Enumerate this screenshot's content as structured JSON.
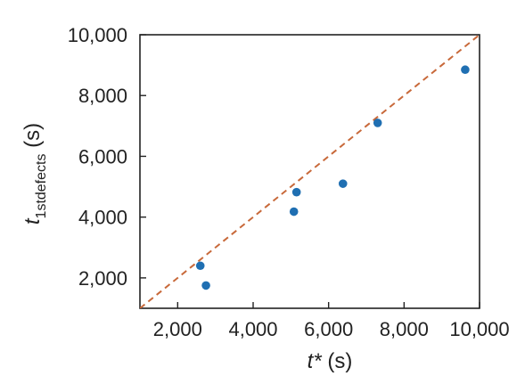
{
  "chart_data": {
    "type": "scatter",
    "xlabel": {
      "var": "t*",
      "unit": "(s)"
    },
    "ylabel": {
      "var": "t",
      "sub": "1stdefects",
      "unit": "(s)"
    },
    "xlim": [
      1000,
      10000
    ],
    "ylim": [
      1000,
      10000
    ],
    "x_ticks": [
      2000,
      4000,
      6000,
      8000,
      10000
    ],
    "x_tick_labels": [
      "2,000",
      "4,000",
      "6,000",
      "8,000",
      "10,000"
    ],
    "y_ticks": [
      2000,
      4000,
      6000,
      8000,
      10000
    ],
    "y_tick_labels": [
      "2,000",
      "4,000",
      "6,000",
      "8,000",
      "10,000"
    ],
    "grid": false,
    "series": [
      {
        "points": [
          {
            "x": 2600,
            "y": 2400
          },
          {
            "x": 2750,
            "y": 1750
          },
          {
            "x": 5080,
            "y": 4180
          },
          {
            "x": 5150,
            "y": 4820
          },
          {
            "x": 6380,
            "y": 5100
          },
          {
            "x": 7300,
            "y": 7100
          },
          {
            "x": 9620,
            "y": 8850
          }
        ],
        "color": "#1f6fb2"
      }
    ],
    "reference_line": {
      "kind": "y=x",
      "style": "dashed",
      "color": "#c8693a"
    }
  }
}
